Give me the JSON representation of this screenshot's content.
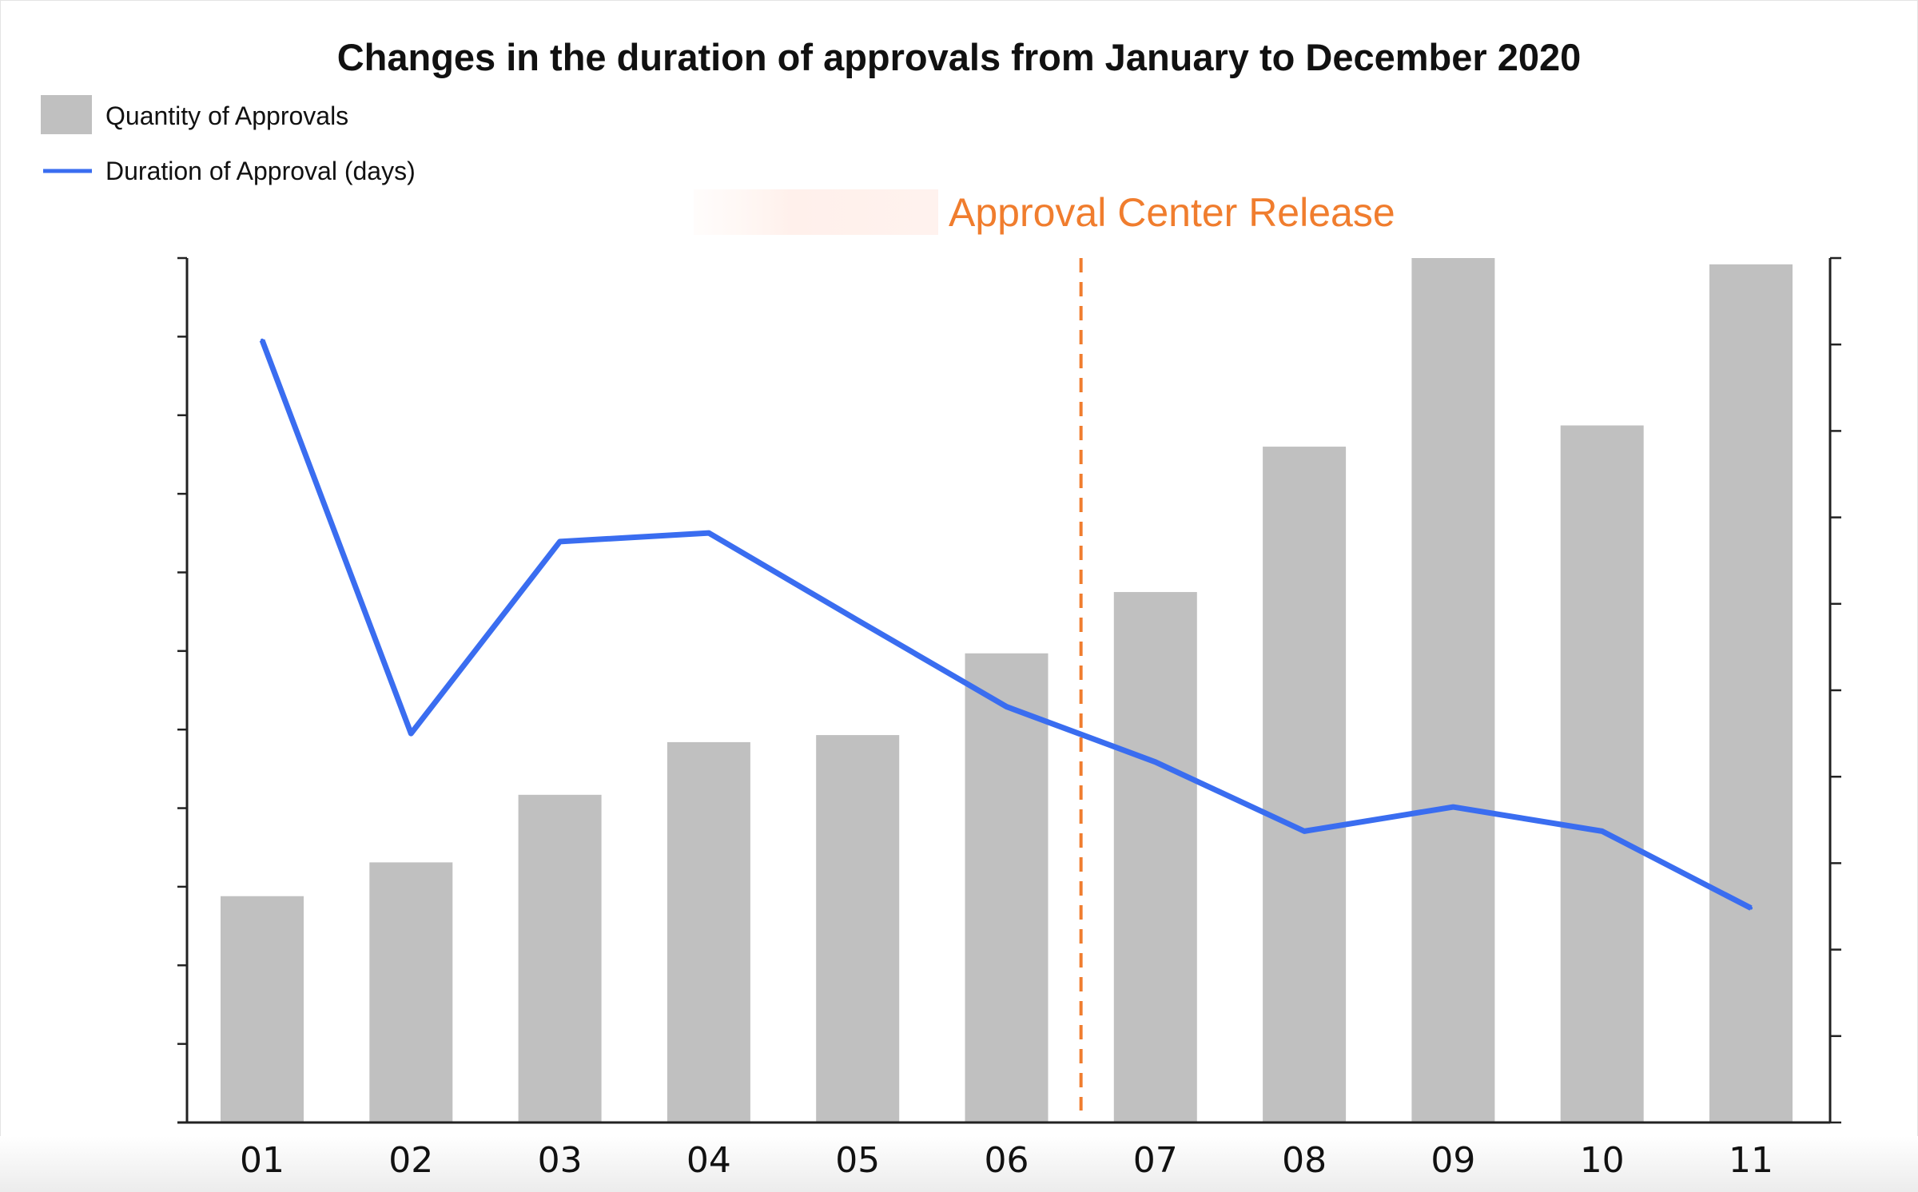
{
  "chart_data": {
    "type": "bar+line",
    "title": "Changes in the duration of approvals from January to December 2020",
    "categories": [
      "01",
      "02",
      "03",
      "04",
      "05",
      "06",
      "07",
      "08",
      "09",
      "10",
      "11"
    ],
    "series": [
      {
        "name": "Quantity of Approvals",
        "type": "bar",
        "axis": "left",
        "color": "#c0c0c0",
        "values": [
          2.88,
          3.31,
          4.17,
          4.84,
          4.93,
          5.97,
          6.75,
          8.6,
          11.0,
          8.87,
          10.92
        ]
      },
      {
        "name": "Duration of Approval (days)",
        "type": "line",
        "axis": "right",
        "color": "#3a6df0",
        "values": [
          9.05,
          4.5,
          6.72,
          6.82,
          5.81,
          4.81,
          4.17,
          3.37,
          3.65,
          3.37,
          2.48
        ]
      }
    ],
    "left_axis": {
      "ylim": [
        0,
        11
      ],
      "tick_count": 12,
      "tick_labels_shown": false
    },
    "right_axis": {
      "ylim": [
        0,
        10
      ],
      "tick_count": 11,
      "tick_labels_shown": false
    },
    "annotation": {
      "text": "Approval Center Release",
      "x_position_category": 6.5,
      "color": "#f07d2e",
      "style": "dashed vertical line"
    },
    "legend": {
      "placement": "top-left"
    },
    "grid": false
  }
}
